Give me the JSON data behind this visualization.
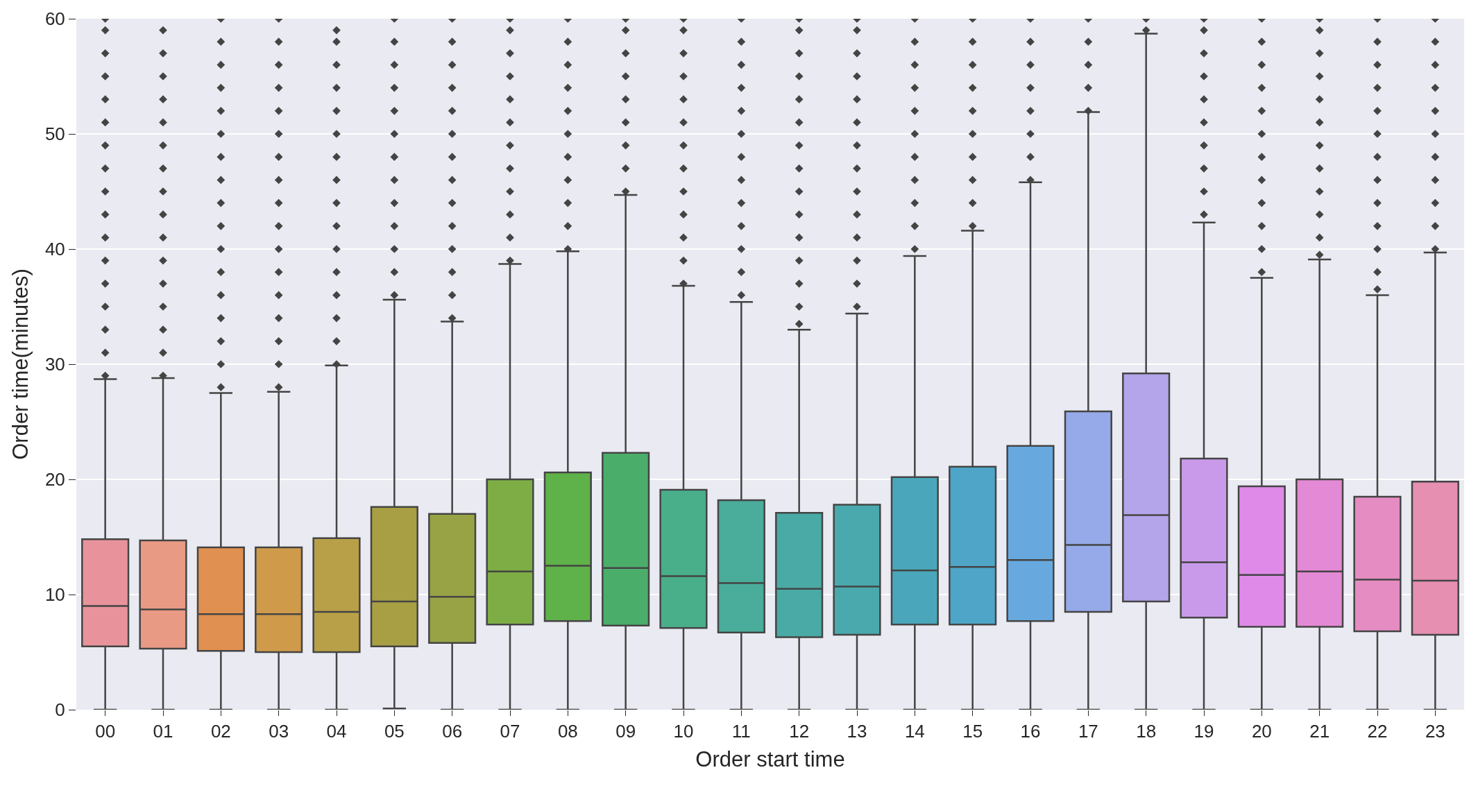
{
  "chart_data": {
    "type": "box",
    "xlabel": "Order start time",
    "ylabel": "Order time(minutes)",
    "categories": [
      "00",
      "01",
      "02",
      "03",
      "04",
      "05",
      "06",
      "07",
      "08",
      "09",
      "10",
      "11",
      "12",
      "13",
      "14",
      "15",
      "16",
      "17",
      "18",
      "19",
      "20",
      "21",
      "22",
      "23"
    ],
    "colors": [
      "#e8939c",
      "#e99a84",
      "#e09050",
      "#cf9a4a",
      "#b8a048",
      "#a89f44",
      "#98a345",
      "#7ead45",
      "#5fb14a",
      "#4aae6a",
      "#49ae8a",
      "#4aac9a",
      "#4aaaa5",
      "#4aa9ad",
      "#4aa7bb",
      "#4ea5c8",
      "#67a9de",
      "#96a9e8",
      "#b4a4ea",
      "#c99aea",
      "#df8ae8",
      "#e389d5",
      "#e58cc2",
      "#e68fb0"
    ],
    "boxes": [
      {
        "low": 0,
        "q1": 5.5,
        "median": 9.0,
        "q3": 14.8,
        "high": 28.7,
        "outliers": [
          29,
          31,
          33,
          35,
          37,
          39,
          41,
          43,
          45,
          47,
          49,
          51,
          53,
          55,
          57,
          59,
          60
        ]
      },
      {
        "low": 0,
        "q1": 5.3,
        "median": 8.7,
        "q3": 14.7,
        "high": 28.8,
        "outliers": [
          29,
          31,
          33,
          35,
          37,
          39,
          41,
          43,
          45,
          47,
          49,
          51,
          53,
          55,
          57,
          59
        ]
      },
      {
        "low": 0,
        "q1": 5.1,
        "median": 8.3,
        "q3": 14.1,
        "high": 27.5,
        "outliers": [
          28,
          30,
          32,
          34,
          36,
          38,
          40,
          42,
          44,
          46,
          48,
          50,
          52,
          54,
          56,
          58,
          60
        ]
      },
      {
        "low": 0,
        "q1": 5.0,
        "median": 8.3,
        "q3": 14.1,
        "high": 27.6,
        "outliers": [
          28,
          30,
          32,
          34,
          36,
          38,
          40,
          42,
          44,
          46,
          48,
          50,
          52,
          54,
          56,
          58,
          60
        ]
      },
      {
        "low": 0,
        "q1": 5.0,
        "median": 8.5,
        "q3": 14.9,
        "high": 29.9,
        "outliers": [
          30,
          32,
          34,
          36,
          38,
          40,
          42,
          44,
          46,
          48,
          50,
          52,
          54,
          56,
          58,
          59
        ]
      },
      {
        "low": 0.1,
        "q1": 5.5,
        "median": 9.4,
        "q3": 17.6,
        "high": 35.6,
        "outliers": [
          36,
          38,
          40,
          42,
          44,
          46,
          48,
          50,
          52,
          54,
          56,
          58,
          60
        ]
      },
      {
        "low": 0,
        "q1": 5.8,
        "median": 9.8,
        "q3": 17.0,
        "high": 33.7,
        "outliers": [
          34,
          36,
          38,
          40,
          42,
          44,
          46,
          48,
          50,
          52,
          54,
          56,
          58,
          60
        ]
      },
      {
        "low": 0,
        "q1": 7.4,
        "median": 12.0,
        "q3": 20.0,
        "high": 38.7,
        "outliers": [
          39,
          41,
          43,
          45,
          47,
          49,
          51,
          53,
          55,
          57,
          59,
          60
        ]
      },
      {
        "low": 0,
        "q1": 7.7,
        "median": 12.5,
        "q3": 20.6,
        "high": 39.8,
        "outliers": [
          40,
          42,
          44,
          46,
          48,
          50,
          52,
          54,
          56,
          58,
          60
        ]
      },
      {
        "low": 0,
        "q1": 7.3,
        "median": 12.3,
        "q3": 22.3,
        "high": 44.7,
        "outliers": [
          45,
          47,
          49,
          51,
          53,
          55,
          57,
          59,
          60
        ]
      },
      {
        "low": 0,
        "q1": 7.1,
        "median": 11.6,
        "q3": 19.1,
        "high": 36.8,
        "outliers": [
          37,
          39,
          41,
          43,
          45,
          47,
          49,
          51,
          53,
          55,
          57,
          59,
          60
        ]
      },
      {
        "low": 0,
        "q1": 6.7,
        "median": 11.0,
        "q3": 18.2,
        "high": 35.4,
        "outliers": [
          36,
          38,
          40,
          42,
          44,
          46,
          48,
          50,
          52,
          54,
          56,
          58,
          60
        ]
      },
      {
        "low": 0,
        "q1": 6.3,
        "median": 10.5,
        "q3": 17.1,
        "high": 33.0,
        "outliers": [
          33.5,
          35,
          37,
          39,
          41,
          43,
          45,
          47,
          49,
          51,
          53,
          55,
          57,
          59,
          60
        ]
      },
      {
        "low": 0,
        "q1": 6.5,
        "median": 10.7,
        "q3": 17.8,
        "high": 34.4,
        "outliers": [
          35,
          37,
          39,
          41,
          43,
          45,
          47,
          49,
          51,
          53,
          55,
          57,
          59,
          60
        ]
      },
      {
        "low": 0,
        "q1": 7.4,
        "median": 12.1,
        "q3": 20.2,
        "high": 39.4,
        "outliers": [
          40,
          42,
          44,
          46,
          48,
          50,
          52,
          54,
          56,
          58,
          60
        ]
      },
      {
        "low": 0,
        "q1": 7.4,
        "median": 12.4,
        "q3": 21.1,
        "high": 41.6,
        "outliers": [
          42,
          44,
          46,
          48,
          50,
          52,
          54,
          56,
          58,
          60
        ]
      },
      {
        "low": 0,
        "q1": 7.7,
        "median": 13.0,
        "q3": 22.9,
        "high": 45.8,
        "outliers": [
          46,
          48,
          50,
          52,
          54,
          56,
          58,
          60
        ]
      },
      {
        "low": 0,
        "q1": 8.5,
        "median": 14.3,
        "q3": 25.9,
        "high": 51.9,
        "outliers": [
          52,
          54,
          56,
          58,
          60
        ]
      },
      {
        "low": 0,
        "q1": 9.4,
        "median": 16.9,
        "q3": 29.2,
        "high": 58.7,
        "outliers": [
          59,
          60
        ]
      },
      {
        "low": 0,
        "q1": 8.0,
        "median": 12.8,
        "q3": 21.8,
        "high": 42.3,
        "outliers": [
          43,
          45,
          47,
          49,
          51,
          53,
          55,
          57,
          59,
          60
        ]
      },
      {
        "low": 0,
        "q1": 7.2,
        "median": 11.7,
        "q3": 19.4,
        "high": 37.5,
        "outliers": [
          38,
          40,
          42,
          44,
          46,
          48,
          50,
          52,
          54,
          56,
          58,
          60
        ]
      },
      {
        "low": 0,
        "q1": 7.2,
        "median": 12.0,
        "q3": 20.0,
        "high": 39.1,
        "outliers": [
          39.5,
          41,
          43,
          45,
          47,
          49,
          51,
          53,
          55,
          57,
          59,
          60
        ]
      },
      {
        "low": 0,
        "q1": 6.8,
        "median": 11.3,
        "q3": 18.5,
        "high": 36.0,
        "outliers": [
          36.5,
          38,
          40,
          42,
          44,
          46,
          48,
          50,
          52,
          54,
          56,
          58,
          60
        ]
      },
      {
        "low": 0,
        "q1": 6.5,
        "median": 11.2,
        "q3": 19.8,
        "high": 39.7,
        "outliers": [
          40,
          42,
          44,
          46,
          48,
          50,
          52,
          54,
          56,
          58,
          60
        ]
      }
    ],
    "ylim": [
      0,
      60
    ],
    "yticks": [
      0,
      10,
      20,
      30,
      40,
      50,
      60
    ],
    "grid": "y",
    "marker": "diamond",
    "legend": false
  }
}
